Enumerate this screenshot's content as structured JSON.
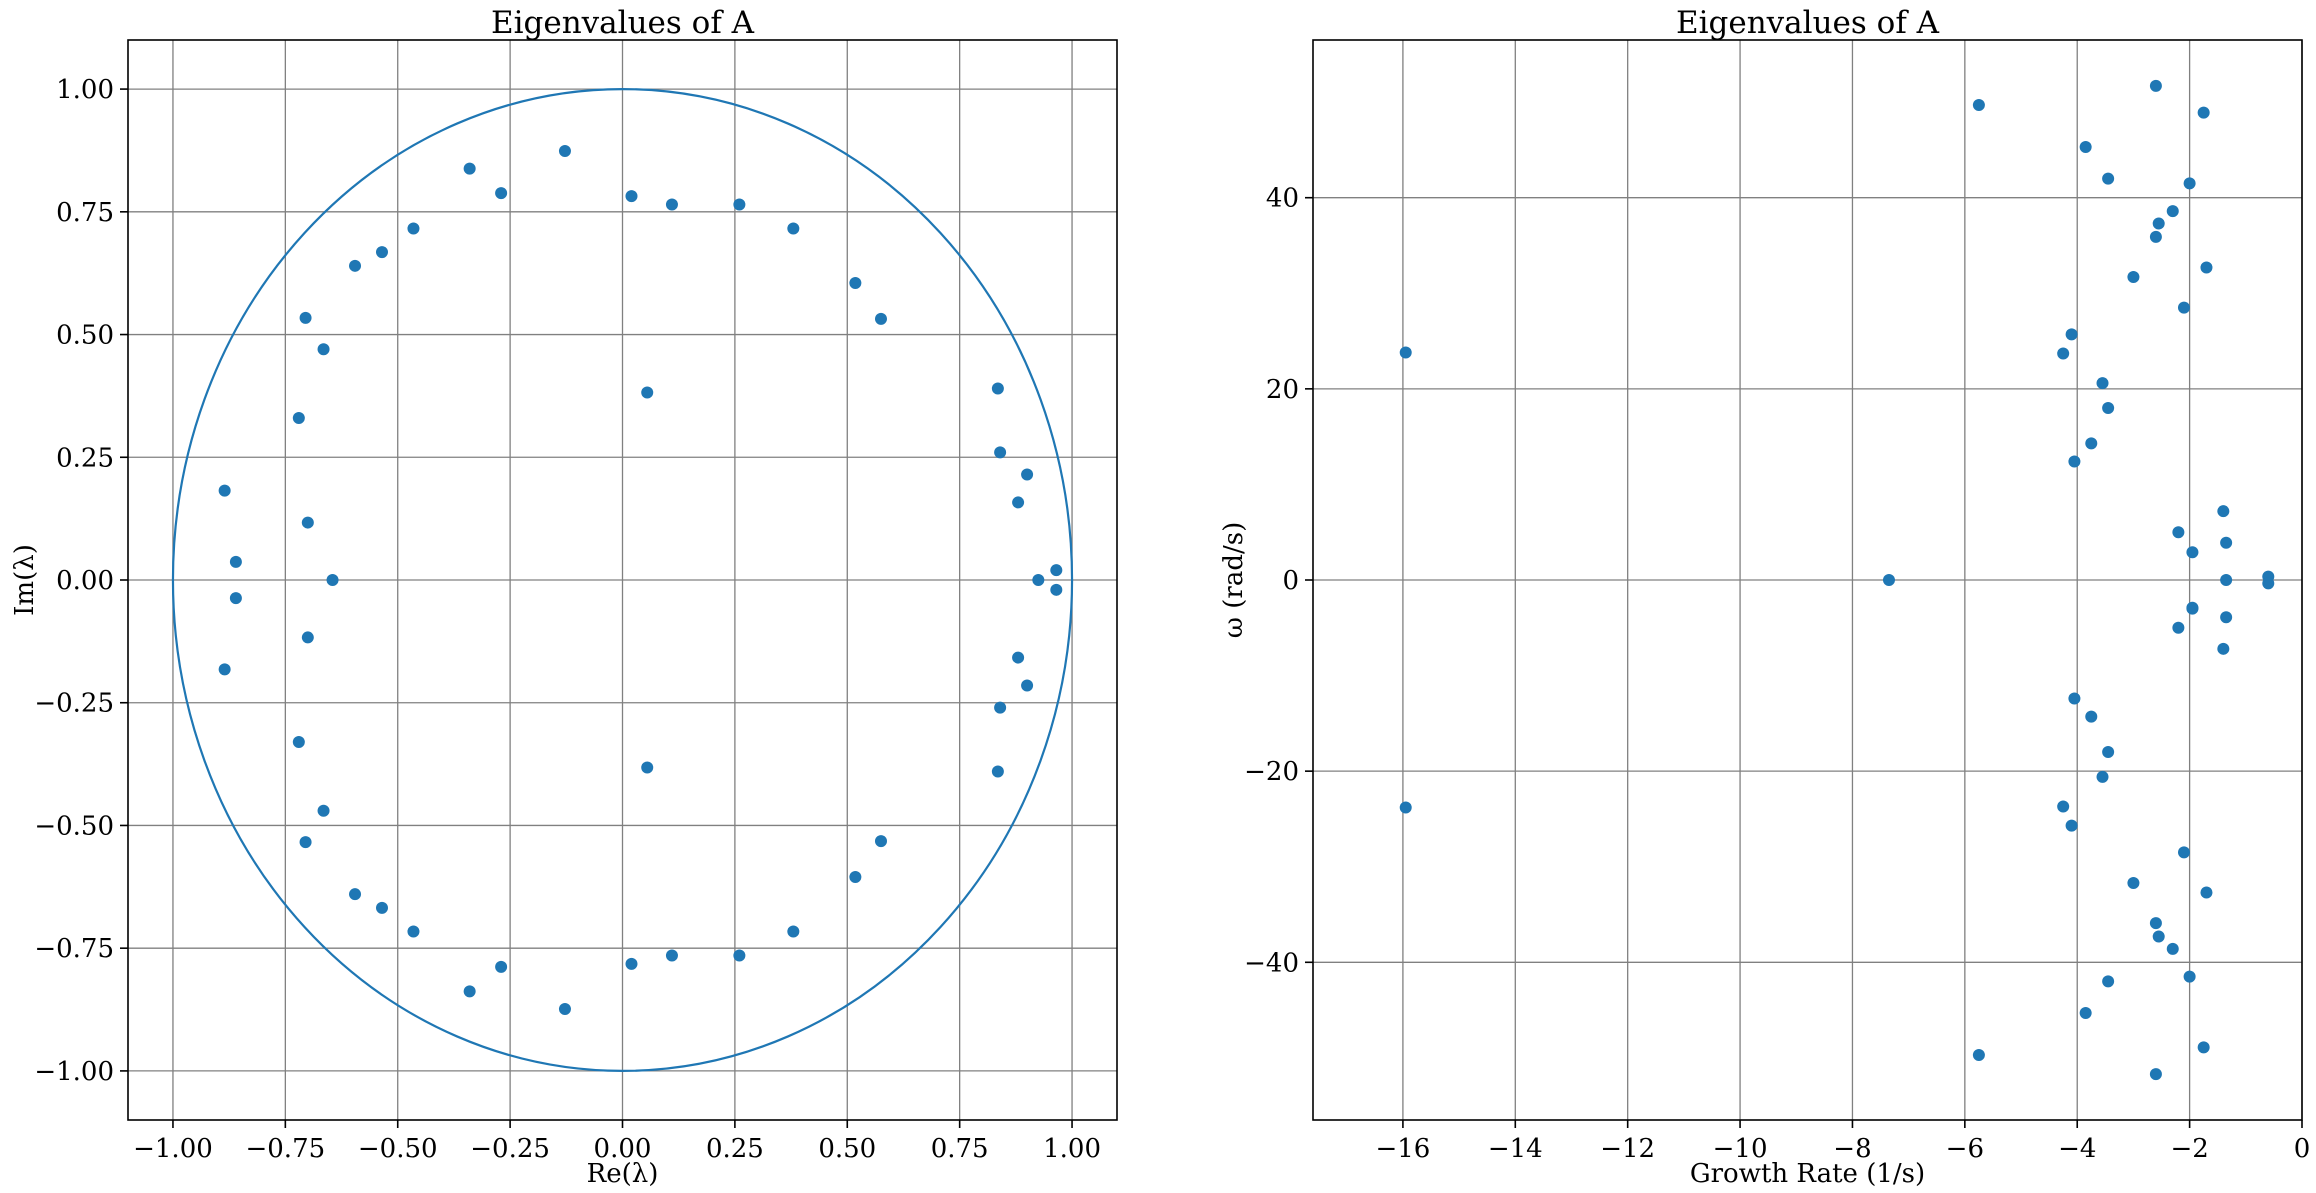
{
  "chart_data": [
    {
      "type": "scatter",
      "title": "Eigenvalues of A",
      "xlabel": "Re(λ)",
      "ylabel": "Im(λ)",
      "xlim": [
        -1.1,
        1.1
      ],
      "ylim": [
        -1.1,
        1.1
      ],
      "xticks": [
        -1.0,
        -0.75,
        -0.5,
        -0.25,
        0.0,
        0.25,
        0.5,
        0.75,
        1.0
      ],
      "yticks": [
        -1.0,
        -0.75,
        -0.5,
        -0.25,
        0.0,
        0.25,
        0.5,
        0.75,
        1.0
      ],
      "xtick_labels": [
        "−1.00",
        "−0.75",
        "−0.50",
        "−0.25",
        "0.00",
        "0.25",
        "0.50",
        "0.75",
        "1.00"
      ],
      "ytick_labels": [
        "−1.00",
        "−0.75",
        "−0.50",
        "−0.25",
        "0.00",
        "0.25",
        "0.50",
        "0.75",
        "1.00"
      ],
      "grid": true,
      "unit_circle": true,
      "color": "#1f77b4",
      "points": [
        [
          -0.128,
          0.874
        ],
        [
          -0.128,
          -0.874
        ],
        [
          -0.34,
          0.838
        ],
        [
          -0.34,
          -0.838
        ],
        [
          -0.27,
          0.788
        ],
        [
          -0.27,
          -0.788
        ],
        [
          0.02,
          0.782
        ],
        [
          0.02,
          -0.782
        ],
        [
          0.11,
          0.765
        ],
        [
          0.11,
          -0.765
        ],
        [
          0.26,
          0.765
        ],
        [
          0.26,
          -0.765
        ],
        [
          0.38,
          0.716
        ],
        [
          0.38,
          -0.716
        ],
        [
          -0.465,
          0.716
        ],
        [
          -0.465,
          -0.716
        ],
        [
          -0.535,
          0.668
        ],
        [
          -0.535,
          -0.668
        ],
        [
          -0.595,
          0.64
        ],
        [
          -0.595,
          -0.64
        ],
        [
          0.518,
          0.605
        ],
        [
          0.518,
          -0.605
        ],
        [
          0.575,
          0.532
        ],
        [
          0.575,
          -0.532
        ],
        [
          -0.705,
          0.534
        ],
        [
          -0.705,
          -0.534
        ],
        [
          -0.665,
          0.47
        ],
        [
          -0.665,
          -0.47
        ],
        [
          0.835,
          0.39
        ],
        [
          0.835,
          -0.39
        ],
        [
          0.055,
          0.382
        ],
        [
          0.055,
          -0.382
        ],
        [
          -0.72,
          0.33
        ],
        [
          -0.72,
          -0.33
        ],
        [
          0.84,
          0.26
        ],
        [
          0.84,
          -0.26
        ],
        [
          0.9,
          0.215
        ],
        [
          0.9,
          -0.215
        ],
        [
          -0.885,
          0.182
        ],
        [
          -0.885,
          -0.182
        ],
        [
          0.88,
          0.158
        ],
        [
          0.88,
          -0.158
        ],
        [
          -0.7,
          0.117
        ],
        [
          -0.7,
          -0.117
        ],
        [
          -0.86,
          0.037
        ],
        [
          -0.86,
          -0.037
        ],
        [
          0.965,
          0.02
        ],
        [
          0.965,
          -0.02
        ],
        [
          0.925,
          0.0
        ],
        [
          -0.645,
          0.0
        ]
      ]
    },
    {
      "type": "scatter",
      "title": "Eigenvalues of A",
      "xlabel": "Growth Rate (1/s)",
      "ylabel": "ω (rad/s)",
      "xlim": [
        -17.6,
        0.0
      ],
      "ylim": [
        -56.5,
        56.5
      ],
      "xticks": [
        -16,
        -14,
        -12,
        -10,
        -8,
        -6,
        -4,
        -2,
        0
      ],
      "yticks": [
        -40,
        -20,
        0,
        20,
        40
      ],
      "xtick_labels": [
        "−16",
        "−14",
        "−12",
        "−10",
        "−8",
        "−6",
        "−4",
        "−2",
        "0"
      ],
      "ytick_labels": [
        "−40",
        "−20",
        "0",
        "20",
        "40"
      ],
      "grid": true,
      "color": "#1f77b4",
      "points": [
        [
          -15.95,
          23.8
        ],
        [
          -15.95,
          -23.8
        ],
        [
          -7.35,
          0.0
        ],
        [
          -5.75,
          49.7
        ],
        [
          -5.75,
          -49.7
        ],
        [
          -4.25,
          23.7
        ],
        [
          -4.25,
          -23.7
        ],
        [
          -4.1,
          25.7
        ],
        [
          -4.1,
          -25.7
        ],
        [
          -4.05,
          12.4
        ],
        [
          -4.05,
          -12.4
        ],
        [
          -3.85,
          45.3
        ],
        [
          -3.85,
          -45.3
        ],
        [
          -3.75,
          14.3
        ],
        [
          -3.75,
          -14.3
        ],
        [
          -3.55,
          20.6
        ],
        [
          -3.55,
          -20.6
        ],
        [
          -3.45,
          42.0
        ],
        [
          -3.45,
          -42.0
        ],
        [
          -3.45,
          18.0
        ],
        [
          -3.45,
          -18.0
        ],
        [
          -3.0,
          31.7
        ],
        [
          -3.0,
          -31.7
        ],
        [
          -2.6,
          51.7
        ],
        [
          -2.6,
          -51.7
        ],
        [
          -2.55,
          37.3
        ],
        [
          -2.55,
          -37.3
        ],
        [
          -2.6,
          35.9
        ],
        [
          -2.6,
          -35.9
        ],
        [
          -2.3,
          38.6
        ],
        [
          -2.3,
          -38.6
        ],
        [
          -2.2,
          5.0
        ],
        [
          -2.2,
          -5.0
        ],
        [
          -2.1,
          28.5
        ],
        [
          -2.1,
          -28.5
        ],
        [
          -2.0,
          41.5
        ],
        [
          -2.0,
          -41.5
        ],
        [
          -1.95,
          2.9
        ],
        [
          -1.95,
          -2.9
        ],
        [
          -1.95,
          -3.0
        ],
        [
          -1.75,
          48.9
        ],
        [
          -1.75,
          -48.9
        ],
        [
          -1.7,
          32.7
        ],
        [
          -1.7,
          -32.7
        ],
        [
          -1.4,
          7.2
        ],
        [
          -1.4,
          -7.2
        ],
        [
          -1.35,
          3.9
        ],
        [
          -1.35,
          -3.9
        ],
        [
          -1.35,
          0.0
        ],
        [
          -0.6,
          0.35
        ],
        [
          -0.6,
          -0.35
        ]
      ]
    }
  ]
}
